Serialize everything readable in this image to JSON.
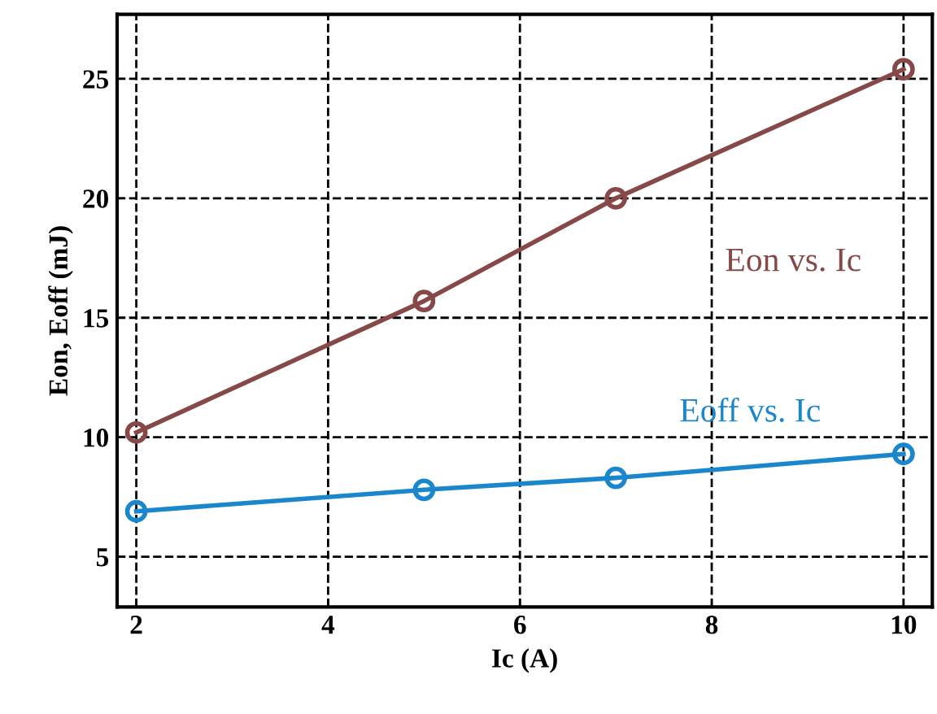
{
  "chart_data": {
    "type": "line",
    "xlabel": "Ic (A)",
    "ylabel": "Eon, Eoff (mJ)",
    "x": [
      2,
      5,
      7,
      10
    ],
    "series": [
      {
        "name": "Eon vs. Ic",
        "color": "#874848",
        "values": [
          10.2,
          15.7,
          20.0,
          25.4
        ]
      },
      {
        "name": "Eoff vs. Ic",
        "color": "#1a86cc",
        "values": [
          6.9,
          7.8,
          8.3,
          9.3
        ]
      }
    ],
    "xlim": [
      1.8,
      10.3
    ],
    "ylim": [
      2.9,
      27.7
    ],
    "xticks": [
      2,
      4,
      6,
      8,
      10
    ],
    "yticks": [
      5,
      10,
      15,
      20,
      25
    ],
    "grid": true,
    "marker": "circle",
    "line_style": "solid",
    "legend": false
  }
}
